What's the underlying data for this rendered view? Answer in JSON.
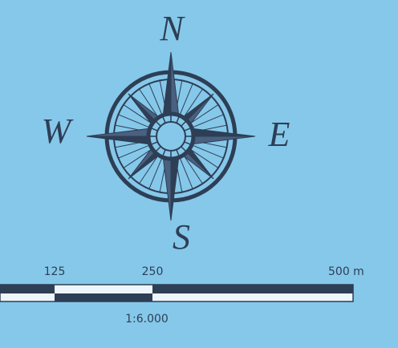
{
  "compass": {
    "labels": {
      "north": "N",
      "east": "E",
      "south": "S",
      "west": "W"
    }
  },
  "scale_bar": {
    "labels": [
      "125",
      "250",
      "500 m"
    ],
    "ratio": "1:6.000"
  }
}
